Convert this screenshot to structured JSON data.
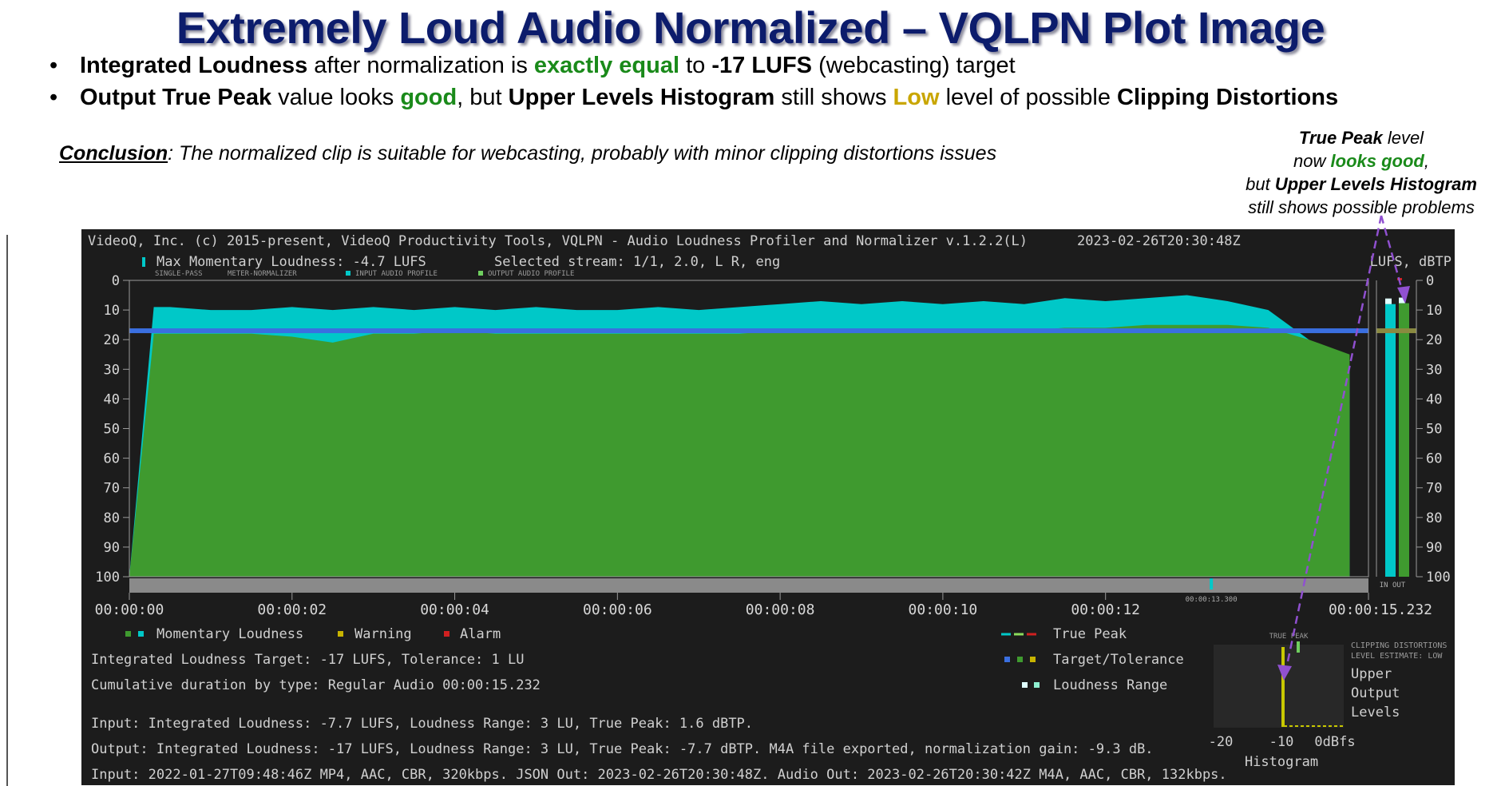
{
  "title": "Extremely Loud Audio Normalized – VQLPN Plot Image",
  "bullets": [
    {
      "b1": "Integrated Loudness",
      "t1": " after normalization is ",
      "g1": "exactly equal",
      "t2": " to ",
      "b2": "-17 LUFS",
      "t3": " (webcasting) target"
    },
    {
      "b1": "Output True Peak",
      "t1": " value looks ",
      "g1": "good",
      "t2": ", but ",
      "b2": "Upper Levels Histogram",
      "t3": " still shows ",
      "o1": "Low",
      "t4": " level of possible ",
      "b3": "Clipping Distortions"
    }
  ],
  "conclusion": {
    "label": "Conclusion",
    "text": ": The normalized clip is suitable for webcasting, probably with minor clipping distortions issues"
  },
  "callout": {
    "l1b": "True Peak",
    "l1": " level",
    "l2a": "now ",
    "l2g": "looks good",
    "l2c": ",",
    "l3a": "but ",
    "l3b": "Upper Levels Histogram",
    "l4": "still shows possible problems"
  },
  "plot": {
    "header": "VideoQ, Inc. (c) 2015-present, VideoQ Productivity Tools, VQLPN - Audio Loudness Profiler and Normalizer v.1.2.2(L)",
    "timestamp": "2023-02-26T20:30:48Z",
    "max_momentary": "Max Momentary Loudness: -4.7 LUFS",
    "selected_stream": "Selected stream: 1/1, 2.0, L R, eng",
    "units": "LUFS, dBTP",
    "small_labels": [
      "SINGLE-PASS",
      "METER-NORMALIZER",
      "INPUT AUDIO PROFILE",
      "OUTPUT AUDIO PROFILE"
    ],
    "in_out": "IN OUT",
    "marker_time": "00:00:13.300",
    "end_time": "00:00:15.232",
    "legend": {
      "momentary": "Momentary Loudness",
      "warning": "Warning",
      "alarm": "Alarm",
      "true_peak": "True Peak",
      "target": "Target/Tolerance",
      "range": "Loudness Range"
    },
    "info": {
      "target_line": "Integrated Loudness Target: -17 LUFS,  Tolerance: 1 LU",
      "duration_line": "Cumulative duration by type:   Regular Audio 00:00:15.232",
      "input_line": "Input:   Integrated Loudness: -7.7 LUFS, Loudness Range: 3 LU, True Peak: 1.6 dBTP.",
      "output_line": "Output: Integrated Loudness: -17 LUFS, Loudness Range: 3 LU, True Peak: -7.7 dBTP.  M4A file exported, normalization gain: -9.3 dB.",
      "files_line": "Input: 2022-01-27T09:48:46Z MP4, AAC, CBR, 320kbps.   JSON Out: 2023-02-26T20:30:48Z.   Audio Out: 2023-02-26T20:30:42Z M4A, AAC, CBR, 132kbps."
    },
    "histogram": {
      "top_label": "TRUE PEAK",
      "side_title": [
        "CLIPPING DISTORTIONS",
        "LEVEL ESTIMATE: LOW"
      ],
      "side_labels": [
        "Upper",
        "Output",
        "Levels"
      ],
      "ticks": [
        "-20",
        "-10",
        "0dBfs"
      ],
      "caption": "Histogram"
    },
    "colors": {
      "input": "#00c8c8",
      "output": "#3f9a2f",
      "target": "#3a6fe0",
      "warning": "#c8b400",
      "alarm": "#d02020",
      "panel": "#1c1c1c",
      "grid": "#9a9a9a"
    }
  },
  "chart_data": {
    "type": "area",
    "xlabel": "",
    "ylabel": "",
    "x_ticks": [
      "00:00:00",
      "00:00:02",
      "00:00:04",
      "00:00:06",
      "00:00:08",
      "00:00:10",
      "00:00:12",
      "00:00:15.232"
    ],
    "y_ticks": [
      0,
      10,
      20,
      30,
      40,
      50,
      60,
      70,
      80,
      90,
      100
    ],
    "xlim": [
      0,
      15.232
    ],
    "ylim": [
      0,
      100
    ],
    "series": [
      {
        "name": "INPUT AUDIO PROFILE",
        "x": [
          0,
          0.3,
          0.5,
          1,
          1.5,
          2,
          2.5,
          3,
          3.5,
          4,
          4.5,
          5,
          5.5,
          6,
          6.5,
          7,
          7.5,
          8,
          8.5,
          9,
          9.5,
          10,
          10.5,
          11,
          11.5,
          12,
          12.5,
          13,
          13.5,
          14,
          14.5,
          15.0
        ],
        "values": [
          100,
          9,
          9,
          10,
          10,
          9,
          10,
          9,
          10,
          9,
          10,
          9,
          10,
          10,
          9,
          10,
          9,
          8,
          7,
          8,
          7,
          8,
          7,
          8,
          6,
          7,
          6,
          5,
          7,
          10,
          20,
          30
        ]
      },
      {
        "name": "OUTPUT AUDIO PROFILE",
        "x": [
          0,
          0.3,
          0.5,
          1,
          1.5,
          2,
          2.5,
          3,
          3.5,
          4,
          4.5,
          5,
          5.5,
          6,
          6.5,
          7,
          7.5,
          8,
          8.5,
          9,
          9.5,
          10,
          10.5,
          11,
          11.5,
          12,
          12.5,
          13,
          13.5,
          14,
          14.5,
          15.0
        ],
        "values": [
          100,
          18,
          18,
          18,
          18,
          19,
          21,
          18,
          18,
          17,
          18,
          18,
          18,
          18,
          18,
          18,
          18,
          17,
          17,
          17,
          17,
          17,
          17,
          17,
          16,
          16,
          15,
          15,
          15,
          16,
          20,
          25
        ]
      }
    ],
    "target_level": 17,
    "bars": [
      {
        "name": "IN",
        "value": 8
      },
      {
        "name": "OUT",
        "value": 7.7
      }
    ]
  }
}
